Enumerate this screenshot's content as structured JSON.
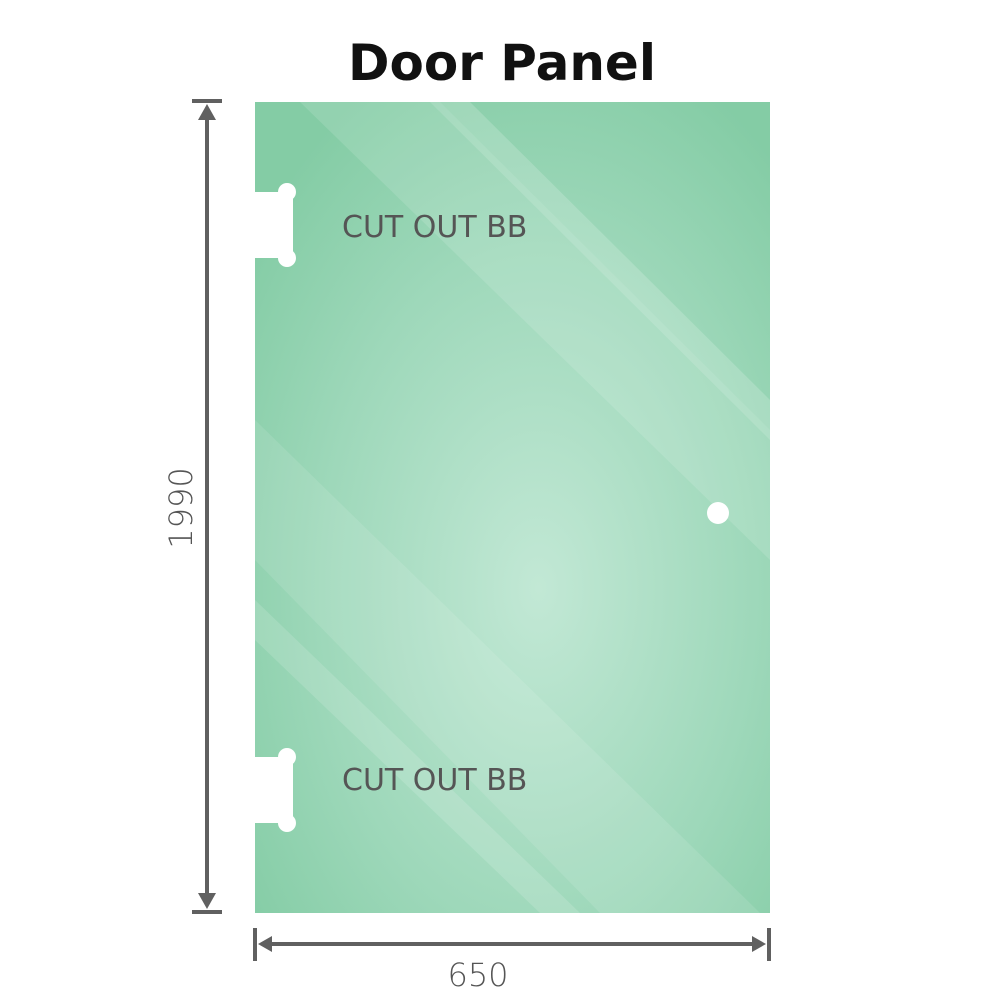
{
  "title": "Door Panel",
  "cutouts": [
    {
      "label": "CUT OUT BB"
    },
    {
      "label": "CUT OUT BB"
    }
  ],
  "dimensions": {
    "height": "1990",
    "width": "650"
  },
  "colors": {
    "glass": "#8fd0ad",
    "glass_light": "#bfe6d2",
    "dimension_line": "#606060",
    "text": "#555555"
  }
}
